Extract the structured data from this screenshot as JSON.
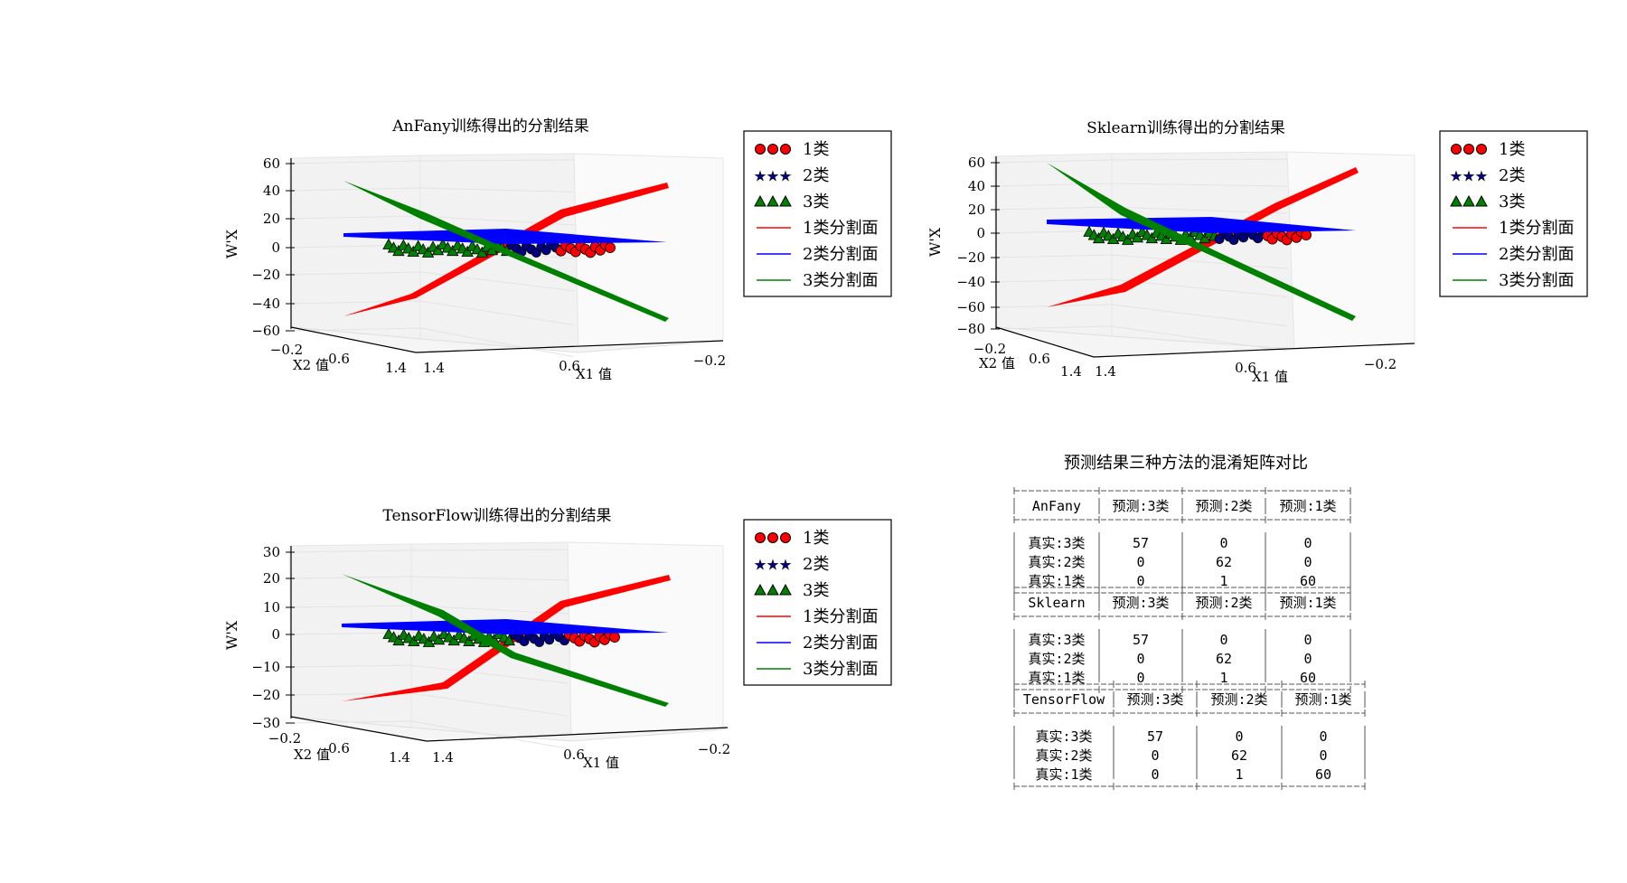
{
  "chart_data": [
    {
      "type": "3d-surface-scatter",
      "title": "AnFany训练得出的分割结果",
      "xlabel": "X1 值",
      "ylabel": "X2 值",
      "zlabel": "W'X",
      "x_ticks": [
        "1.4",
        "0.6",
        "−0.2"
      ],
      "y_ticks": [
        "−0.2",
        "0.6",
        "1.4"
      ],
      "z_ticks": [
        "60",
        "40",
        "20",
        "0",
        "−20",
        "−40",
        "−60"
      ],
      "legend": [
        "1类",
        "2类",
        "3类",
        "1类分割面",
        "2类分割面",
        "3类分割面"
      ],
      "legend_position": "right"
    },
    {
      "type": "3d-surface-scatter",
      "title": "Sklearn训练得出的分割结果",
      "xlabel": "X1 值",
      "ylabel": "X2 值",
      "zlabel": "W'X",
      "x_ticks": [
        "1.4",
        "0.6",
        "−0.2"
      ],
      "y_ticks": [
        "−0.2",
        "0.6",
        "1.4"
      ],
      "z_ticks": [
        "60",
        "40",
        "20",
        "0",
        "−20",
        "−40",
        "−60",
        "−80"
      ],
      "legend": [
        "1类",
        "2类",
        "3类",
        "1类分割面",
        "2类分割面",
        "3类分割面"
      ],
      "legend_position": "right"
    },
    {
      "type": "3d-surface-scatter",
      "title": "TensorFlow训练得出的分割结果",
      "xlabel": "X1 值",
      "ylabel": "X2 值",
      "zlabel": "W'X",
      "x_ticks": [
        "1.4",
        "0.6",
        "−0.2"
      ],
      "y_ticks": [
        "−0.2",
        "0.6",
        "1.4"
      ],
      "z_ticks": [
        "30",
        "20",
        "10",
        "0",
        "−10",
        "−20",
        "−30"
      ],
      "legend": [
        "1类",
        "2类",
        "3类",
        "1类分割面",
        "2类分割面",
        "3类分割面"
      ],
      "legend_position": "right"
    },
    {
      "type": "table",
      "title": "预测结果三种方法的混淆矩阵对比",
      "tables": [
        {
          "method": "AnFany",
          "columns": [
            "预测:3类",
            "预测:2类",
            "预测:1类"
          ],
          "rows": [
            {
              "label": "真实:3类",
              "values": [
                "57",
                "0",
                "0"
              ]
            },
            {
              "label": "真实:2类",
              "values": [
                "0",
                "62",
                "0"
              ]
            },
            {
              "label": "真实:1类",
              "values": [
                "0",
                "1",
                "60"
              ]
            }
          ]
        },
        {
          "method": "Sklearn",
          "columns": [
            "预测:3类",
            "预测:2类",
            "预测:1类"
          ],
          "rows": [
            {
              "label": "真实:3类",
              "values": [
                "57",
                "0",
                "0"
              ]
            },
            {
              "label": "真实:2类",
              "values": [
                "0",
                "62",
                "0"
              ]
            },
            {
              "label": "真实:1类",
              "values": [
                "0",
                "1",
                "60"
              ]
            }
          ]
        },
        {
          "method": "TensorFlow",
          "columns": [
            "预测:3类",
            "预测:2类",
            "预测:1类"
          ],
          "rows": [
            {
              "label": "真实:3类",
              "values": [
                "57",
                "0",
                "0"
              ]
            },
            {
              "label": "真实:2类",
              "values": [
                "0",
                "62",
                "0"
              ]
            },
            {
              "label": "真实:1类",
              "values": [
                "0",
                "1",
                "60"
              ]
            }
          ]
        }
      ]
    }
  ],
  "colors": {
    "class1": "#ff0000",
    "class2": "#0000ff",
    "class3": "#008000",
    "class2_marker": "#000080"
  }
}
